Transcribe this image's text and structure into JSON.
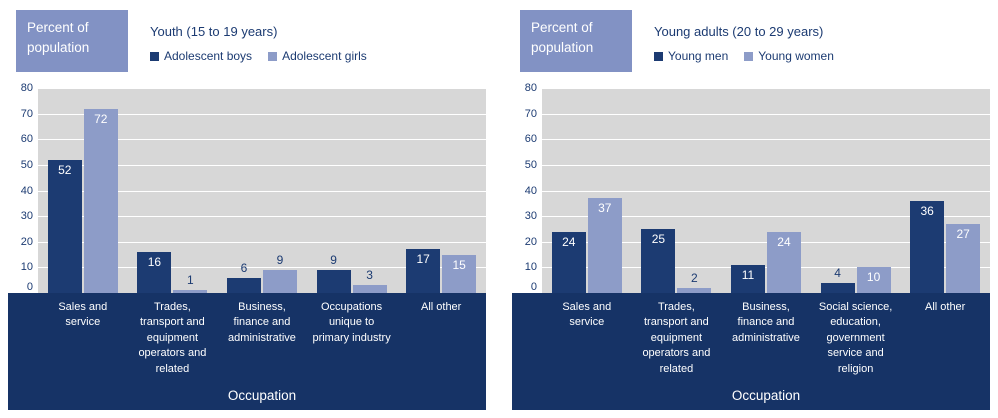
{
  "chart_data": [
    {
      "type": "bar",
      "title": "Youth (15 to 19 years)",
      "ylabel_box": "Percent of population",
      "xlabel": "Occupation",
      "ylim": [
        0,
        80
      ],
      "ytick_step": 10,
      "grid": true,
      "legend_position": "top",
      "categories": [
        "Sales and service",
        "Trades, transport and equipment operators and related",
        "Business, finance and administrative",
        "Occupations unique to primary industry",
        "All other"
      ],
      "series": [
        {
          "name": "Adolescent boys",
          "values": [
            52,
            16,
            6,
            9,
            17
          ]
        },
        {
          "name": "Adolescent girls",
          "values": [
            72,
            1,
            9,
            3,
            15
          ]
        }
      ]
    },
    {
      "type": "bar",
      "title": "Young adults (20 to 29 years)",
      "ylabel_box": "Percent of population",
      "xlabel": "Occupation",
      "ylim": [
        0,
        80
      ],
      "ytick_step": 10,
      "grid": true,
      "legend_position": "top",
      "categories": [
        "Sales and service",
        "Trades, transport and equipment operators and related",
        "Business, finance and administrative",
        "Social science, education, government service and religion",
        "All other"
      ],
      "series": [
        {
          "name": "Young men",
          "values": [
            24,
            25,
            11,
            4,
            36
          ]
        },
        {
          "name": "Young women",
          "values": [
            37,
            2,
            24,
            10,
            27
          ]
        }
      ]
    }
  ],
  "colors": {
    "bars_primary": "#1c3b72",
    "bars_secondary": "#8d9cc8",
    "ylabel_box_bg": "#8292c4",
    "plot_bg": "#d7d7d7",
    "panel_bg": "#163366",
    "gridline": "#ffffff",
    "text": "#1c3b72",
    "label_inside": "#ffffff"
  }
}
